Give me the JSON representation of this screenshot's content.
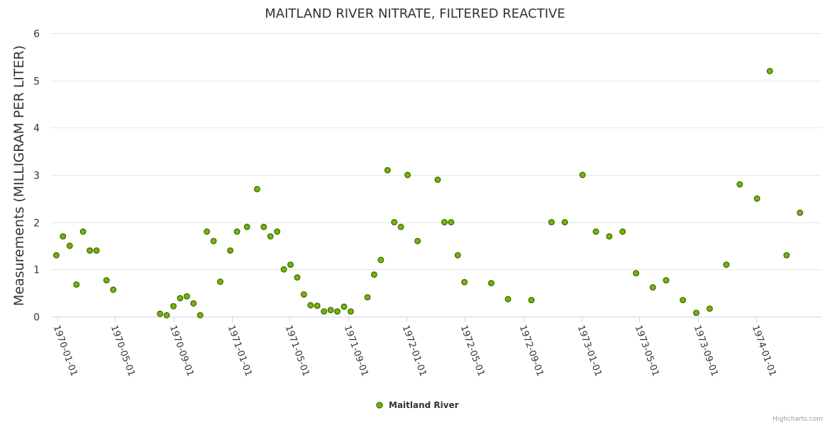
{
  "credits": "Highcharts.com",
  "colors": {
    "point_fill": "#78b40a",
    "point_stroke": "#3f6b00"
  },
  "chart_data": {
    "type": "scatter",
    "title": "MAITLAND RIVER NITRATE, FILTERED REACTIVE",
    "ylabel": "Measurements (MILLIGRAM PER LITER)",
    "xlabel": "",
    "ylim": [
      0,
      6
    ],
    "yticks": [
      "0",
      "1",
      "2",
      "3",
      "4",
      "5",
      "6"
    ],
    "xlim": [
      "1969-12-18",
      "1974-05-18"
    ],
    "xticks": [
      "1970-01-01",
      "1970-05-01",
      "1970-09-01",
      "1971-01-01",
      "1971-05-01",
      "1971-09-01",
      "1972-01-01",
      "1972-05-01",
      "1972-09-01",
      "1973-01-01",
      "1973-05-01",
      "1973-09-01",
      "1974-01-01"
    ],
    "legend": "bottom-center",
    "series": [
      {
        "name": "Maitland River",
        "points": [
          [
            "1969-12-29",
            1.3
          ],
          [
            "1970-01-12",
            1.7
          ],
          [
            "1970-01-26",
            1.5
          ],
          [
            "1970-02-09",
            0.68
          ],
          [
            "1970-02-23",
            1.8
          ],
          [
            "1970-03-09",
            1.4
          ],
          [
            "1970-03-23",
            1.4
          ],
          [
            "1970-04-13",
            0.77
          ],
          [
            "1970-04-27",
            0.57
          ],
          [
            "1970-08-03",
            0.06
          ],
          [
            "1970-08-17",
            0.03
          ],
          [
            "1970-08-31",
            0.22
          ],
          [
            "1970-09-14",
            0.39
          ],
          [
            "1970-09-28",
            0.43
          ],
          [
            "1970-10-12",
            0.28
          ],
          [
            "1970-10-26",
            0.03
          ],
          [
            "1970-11-09",
            1.8
          ],
          [
            "1970-11-23",
            1.6
          ],
          [
            "1970-12-07",
            0.74
          ],
          [
            "1970-12-28",
            1.4
          ],
          [
            "1971-01-11",
            1.8
          ],
          [
            "1971-02-01",
            1.9
          ],
          [
            "1971-02-22",
            2.7
          ],
          [
            "1971-03-08",
            1.9
          ],
          [
            "1971-03-22",
            1.7
          ],
          [
            "1971-04-05",
            1.8
          ],
          [
            "1971-04-19",
            1.0
          ],
          [
            "1971-05-03",
            1.1
          ],
          [
            "1971-05-17",
            0.83
          ],
          [
            "1971-05-31",
            0.47
          ],
          [
            "1971-06-14",
            0.24
          ],
          [
            "1971-06-28",
            0.23
          ],
          [
            "1971-07-12",
            0.11
          ],
          [
            "1971-07-26",
            0.14
          ],
          [
            "1971-08-09",
            0.11
          ],
          [
            "1971-08-23",
            0.21
          ],
          [
            "1971-09-06",
            0.11
          ],
          [
            "1971-10-11",
            0.41
          ],
          [
            "1971-10-25",
            0.89
          ],
          [
            "1971-11-08",
            1.2
          ],
          [
            "1971-11-22",
            3.1
          ],
          [
            "1971-12-06",
            2.0
          ],
          [
            "1971-12-20",
            1.9
          ],
          [
            "1972-01-03",
            3.0
          ],
          [
            "1972-01-24",
            1.6
          ],
          [
            "1972-03-06",
            2.9
          ],
          [
            "1972-03-20",
            2.0
          ],
          [
            "1972-04-03",
            2.0
          ],
          [
            "1972-04-17",
            1.3
          ],
          [
            "1972-05-01",
            0.73
          ],
          [
            "1972-06-26",
            0.71
          ],
          [
            "1972-07-31",
            0.37
          ],
          [
            "1972-09-18",
            0.35
          ],
          [
            "1972-10-30",
            2.0
          ],
          [
            "1972-11-27",
            2.0
          ],
          [
            "1973-01-03",
            3.0
          ],
          [
            "1973-01-31",
            1.8
          ],
          [
            "1973-02-28",
            1.7
          ],
          [
            "1973-03-28",
            1.8
          ],
          [
            "1973-04-25",
            0.92
          ],
          [
            "1973-05-30",
            0.62
          ],
          [
            "1973-06-27",
            0.77
          ],
          [
            "1973-08-01",
            0.35
          ],
          [
            "1973-08-29",
            0.08
          ],
          [
            "1973-09-26",
            0.17
          ],
          [
            "1973-10-31",
            1.1
          ],
          [
            "1973-11-28",
            2.8
          ],
          [
            "1974-01-03",
            2.5
          ],
          [
            "1974-01-30",
            5.2
          ],
          [
            "1974-03-06",
            1.3
          ],
          [
            "1974-04-03",
            2.2
          ]
        ]
      }
    ]
  }
}
